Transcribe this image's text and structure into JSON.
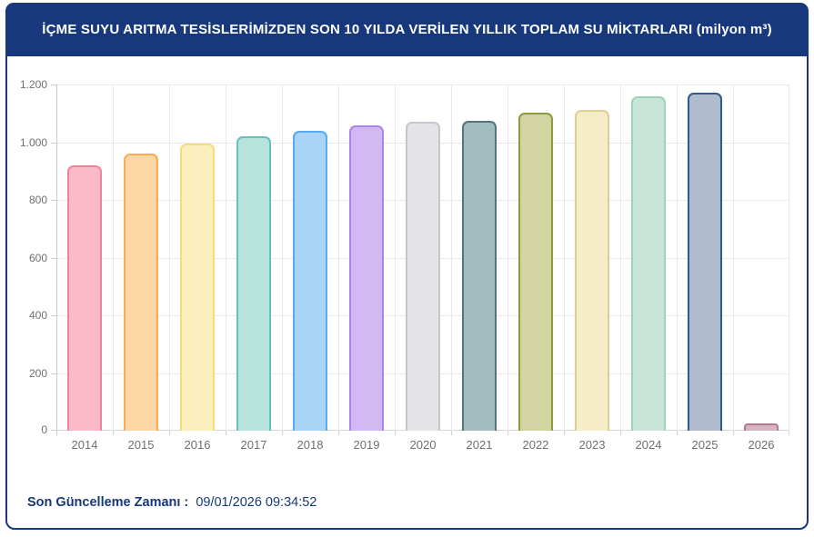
{
  "header": {
    "title": "İÇME SUYU ARITMA TESİSLERİMİZDEN SON 10 YILDA VERİLEN YILLIK TOPLAM SU MİKTARLARI (milyon m³)"
  },
  "footer": {
    "label": "Son Güncelleme Zamanı :",
    "timestamp": "09/01/2026 09:34:52"
  },
  "colors": {
    "navy": "#17387d",
    "grid": "#e9e9e9",
    "axis_line": "#c9c9c9",
    "tick_label": "#6f6f6f"
  },
  "chart_data": {
    "type": "bar",
    "title": "İÇME SUYU ARITMA TESİSLERİMİZDEN SON 10 YILDA VERİLEN YILLIK TOPLAM SU MİKTARLARI",
    "ylabel": "milyon m³",
    "xlabel": "",
    "ylim": [
      0,
      1200
    ],
    "ytick_interval": 200,
    "ytick_labels": [
      "0",
      "200",
      "400",
      "600",
      "800",
      "1.000",
      "1.200"
    ],
    "grid": true,
    "legend": "none",
    "categories": [
      "2014",
      "2015",
      "2016",
      "2017",
      "2018",
      "2019",
      "2020",
      "2021",
      "2022",
      "2023",
      "2024",
      "2025",
      "2026"
    ],
    "values": [
      920,
      961,
      996,
      1020,
      1039,
      1059,
      1071,
      1073,
      1101,
      1112,
      1160,
      1171,
      25
    ],
    "bar_styles": [
      {
        "fill": "#fbbac9",
        "border": "#f3829f"
      },
      {
        "fill": "#fcd6a4",
        "border": "#f6ad56"
      },
      {
        "fill": "#fdeebd",
        "border": "#f8da79"
      },
      {
        "fill": "#b6e3dc",
        "border": "#63c3b8"
      },
      {
        "fill": "#a9d4f5",
        "border": "#58a9ee"
      },
      {
        "fill": "#d3b9f3",
        "border": "#af84e8"
      },
      {
        "fill": "#e4e4e8",
        "border": "#c6c6cd"
      },
      {
        "fill": "#a2bdc0",
        "border": "#50767c"
      },
      {
        "fill": "#d2d5a2",
        "border": "#8e9a40"
      },
      {
        "fill": "#f5ecc8",
        "border": "#e2cd90"
      },
      {
        "fill": "#c9e5d8",
        "border": "#9ed3bb"
      },
      {
        "fill": "#aebccd",
        "border": "#2f5a92"
      },
      {
        "fill": "#d7b5c0",
        "border": "#b2798c"
      }
    ]
  }
}
